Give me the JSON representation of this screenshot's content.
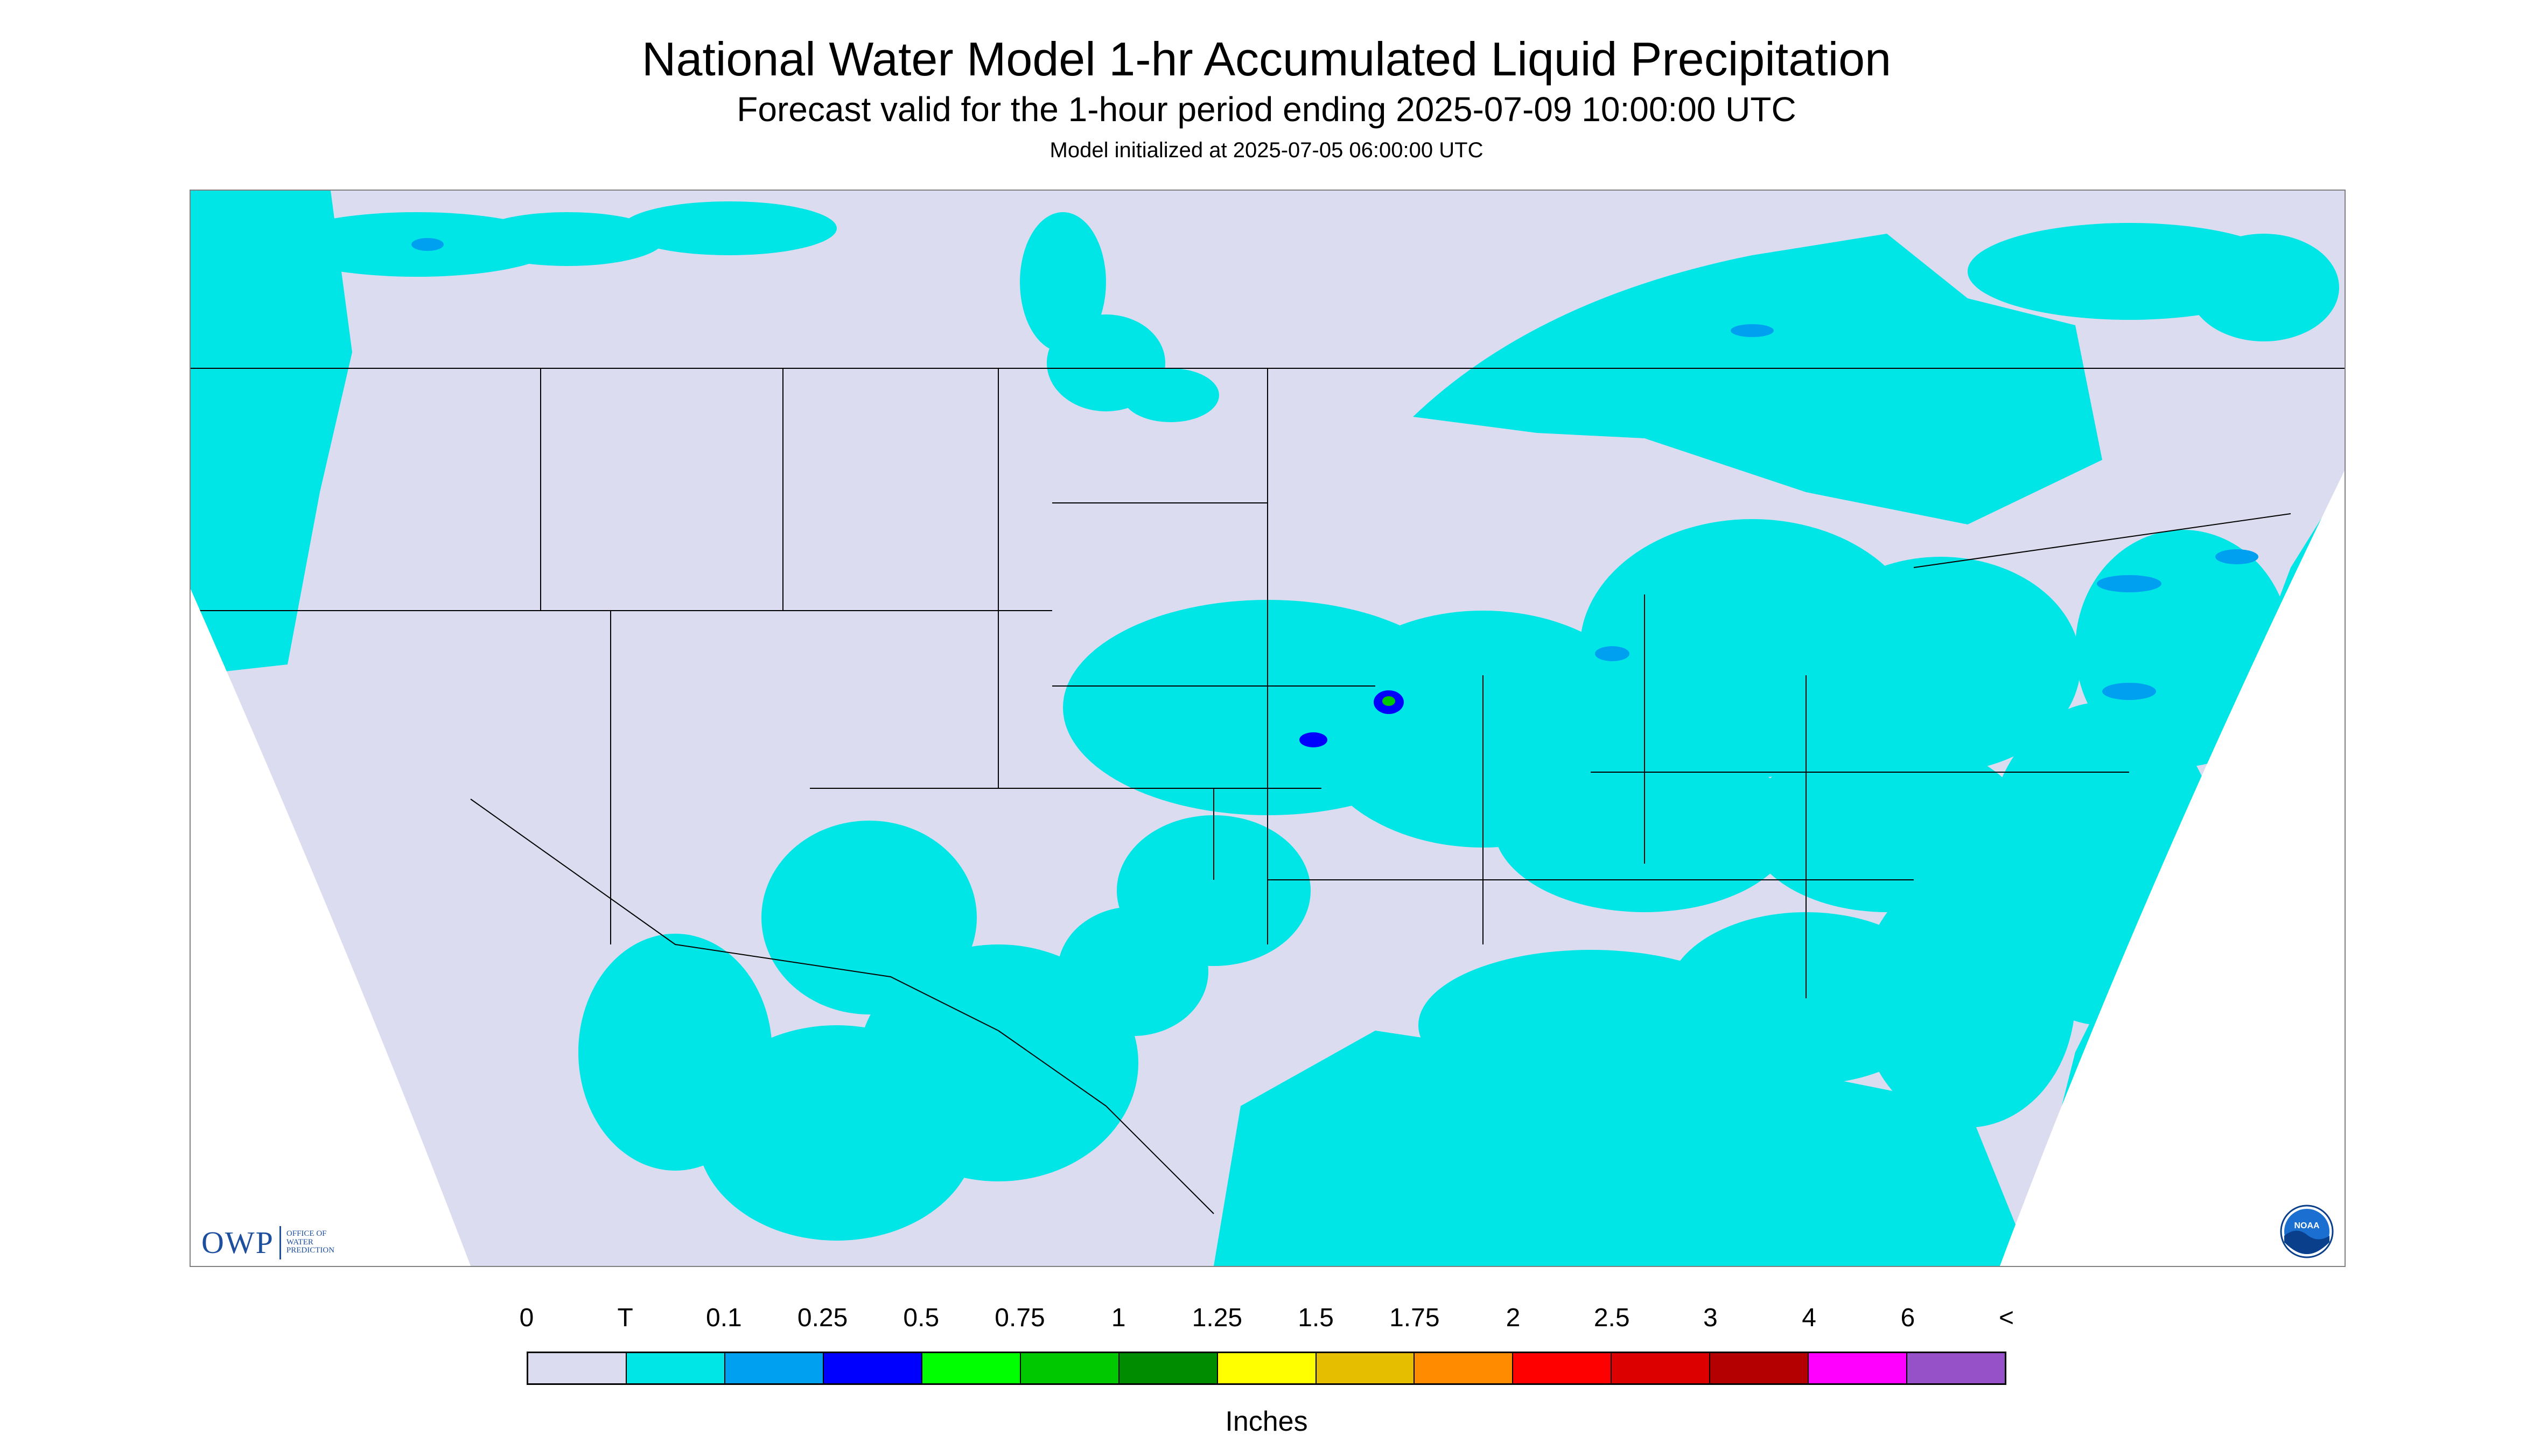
{
  "title": "National Water Model 1-hr Accumulated Liquid Precipitation",
  "subtitle": "Forecast valid for the 1-hour period ending 2025-07-09 10:00:00 UTC",
  "init_time": "Model initialized at 2025-07-05 06:00:00 UTC",
  "logos": {
    "owp_text": "OWP",
    "owp_subtext": [
      "OFFICE OF",
      "WATER",
      "PREDICTION"
    ],
    "noaa_text": "NOAA"
  },
  "legend": {
    "units": "Inches",
    "labels": [
      "0",
      "T",
      "0.1",
      "0.25",
      "0.5",
      "0.75",
      "1",
      "1.25",
      "1.5",
      "1.75",
      "2",
      "2.5",
      "3",
      "4",
      "6",
      "<"
    ],
    "colors": [
      "#dcdcf0",
      "#00e5e5",
      "#00a0f0",
      "#0000ff",
      "#00ff00",
      "#00c800",
      "#008c00",
      "#ffff00",
      "#e6be00",
      "#ff8c00",
      "#ff0000",
      "#dc0000",
      "#b40000",
      "#ff00ff",
      "#9650c8"
    ]
  },
  "map": {
    "background_color": "#dcdcf0",
    "precip_color": "#00e5e5",
    "moderate_color": "#00a0f0",
    "heavy_color": "#0000ff",
    "peak_color": "#00c800",
    "outside_color": "#ffffff",
    "border_color": "#000000"
  }
}
